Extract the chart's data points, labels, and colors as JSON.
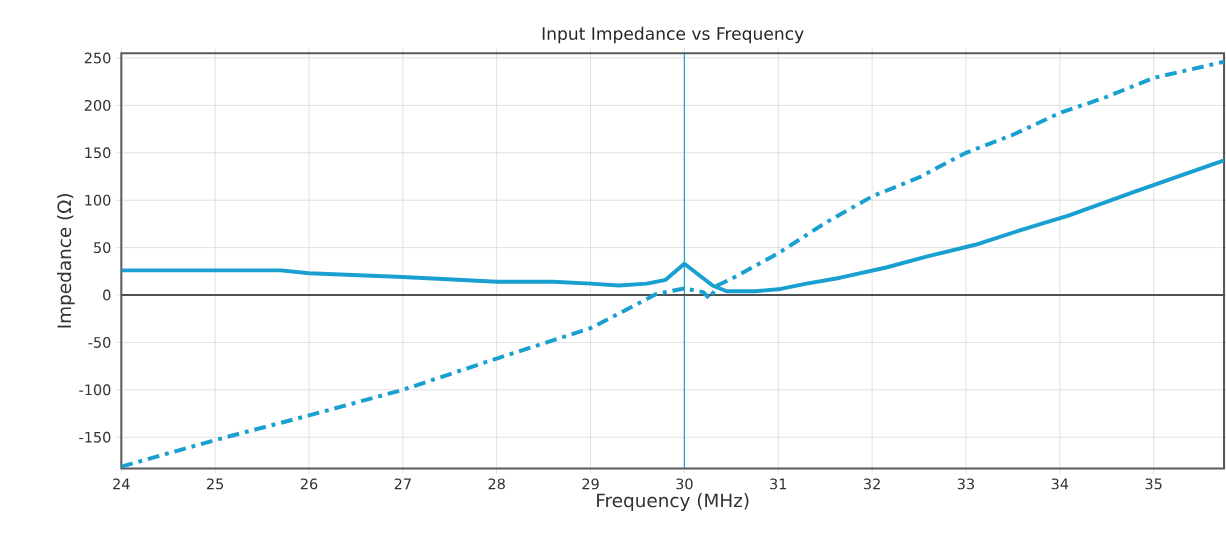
{
  "chart_data": {
    "type": "line",
    "title": "Input Impedance vs Frequency",
    "xlabel": "Frequency (MHz)",
    "ylabel": "Impedance (Ω)",
    "xlim": [
      24,
      35.75
    ],
    "ylim": [
      -183,
      255
    ],
    "xticks": [
      24,
      25,
      26,
      27,
      28,
      29,
      30,
      31,
      32,
      33,
      34,
      35
    ],
    "yticks": [
      -150,
      -100,
      -50,
      0,
      50,
      100,
      150,
      200,
      250
    ],
    "grid": true,
    "marker": "none",
    "ref_lines": [
      {
        "axis": "x",
        "value": 30,
        "color": "#1a9fd1"
      },
      {
        "axis": "y",
        "value": 0,
        "color": "#505050"
      }
    ],
    "series": [
      {
        "color": "#1a9fd1",
        "line_style": "solid",
        "x": [
          24,
          25,
          25.7,
          26,
          27,
          28,
          28.6,
          29,
          29.3,
          29.6,
          29.8,
          30,
          30.3,
          30.45,
          30.75,
          31,
          31.3,
          31.65,
          32.15,
          32.6,
          33.1,
          33.6,
          34.1,
          34.8,
          35.75
        ],
        "values": [
          26,
          26,
          26,
          23,
          19,
          14,
          14,
          12,
          10,
          12,
          16,
          33,
          10,
          4,
          4,
          6,
          12,
          18,
          29,
          41,
          53,
          69,
          84,
          109,
          142
        ]
      },
      {
        "color": "#1a9fd1",
        "line_style": "dashed",
        "x": [
          24,
          25,
          26,
          27,
          28,
          29,
          29.7,
          30,
          30.2,
          30.27,
          30.35,
          30.5,
          31,
          31.5,
          32,
          32.5,
          33,
          33.5,
          34,
          34.5,
          35,
          35.75
        ],
        "values": [
          -181,
          -153,
          -127,
          -100,
          -67,
          -35,
          1,
          7,
          3,
          -4,
          10,
          17,
          44,
          76,
          104,
          124,
          150,
          169,
          192,
          209,
          229,
          246
        ]
      }
    ]
  }
}
